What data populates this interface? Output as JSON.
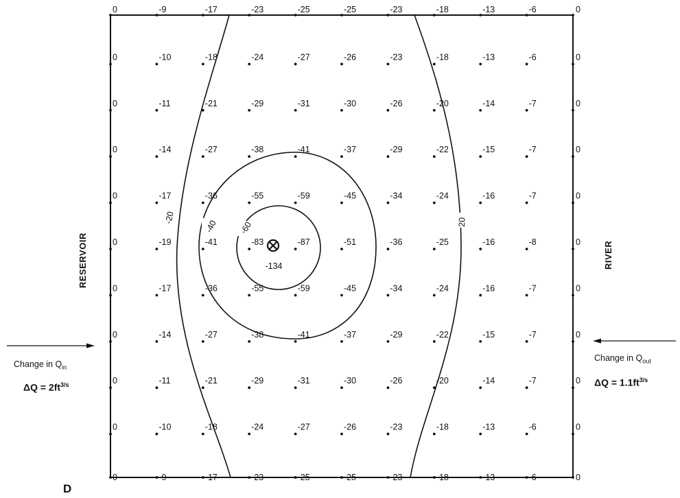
{
  "panel_label": "D",
  "left_boundary_label": "RESERVOIR",
  "right_boundary_label": "RIVER",
  "well_symbol": "well-cross-icon",
  "inflow": {
    "text": "Change in Q",
    "subscript": "in",
    "delta_label": "ΔQ = 2ft",
    "delta_unit": "3/s"
  },
  "outflow": {
    "text": "Change in Q",
    "subscript": "out",
    "delta_label": "ΔQ = 1.1ft",
    "delta_unit": "3/s"
  },
  "contour_labels": [
    "-20",
    "-40",
    "-60",
    "20"
  ],
  "well_value": "-134",
  "grid_values": [
    [
      "0",
      "-9",
      "-17",
      "-23",
      "-25",
      "-25",
      "-23",
      "-18",
      "-13",
      "-6",
      "0"
    ],
    [
      "0",
      "-10",
      "-18",
      "-24",
      "-27",
      "-26",
      "-23",
      "-18",
      "-13",
      "-6",
      "0"
    ],
    [
      "0",
      "-11",
      "-21",
      "-29",
      "-31",
      "-30",
      "-26",
      "-20",
      "-14",
      "-7",
      "0"
    ],
    [
      "0",
      "-14",
      "-27",
      "-38",
      "-41",
      "-37",
      "-29",
      "-22",
      "-15",
      "-7",
      "0"
    ],
    [
      "0",
      "-17",
      "-36",
      "-55",
      "-59",
      "-45",
      "-34",
      "-24",
      "-16",
      "-7",
      "0"
    ],
    [
      "0",
      "-19",
      "-41",
      "-83",
      "-87",
      "-51",
      "-36",
      "-25",
      "-16",
      "-8",
      "0"
    ],
    [
      "0",
      "-17",
      "-36",
      "-55",
      "-59",
      "-45",
      "-34",
      "-24",
      "-16",
      "-7",
      "0"
    ],
    [
      "0",
      "-14",
      "-27",
      "-38",
      "-41",
      "-37",
      "-29",
      "-22",
      "-15",
      "-7",
      "0"
    ],
    [
      "0",
      "-11",
      "-21",
      "-29",
      "-31",
      "-30",
      "-26",
      "-20",
      "-14",
      "-7",
      "0"
    ],
    [
      "0",
      "-10",
      "-18",
      "-24",
      "-27",
      "-26",
      "-23",
      "-18",
      "-13",
      "-6",
      "0"
    ],
    [
      "0",
      "-9",
      "-17",
      "-23",
      "-25",
      "-25",
      "-23",
      "-18",
      "-13",
      "-6",
      "0"
    ]
  ]
}
